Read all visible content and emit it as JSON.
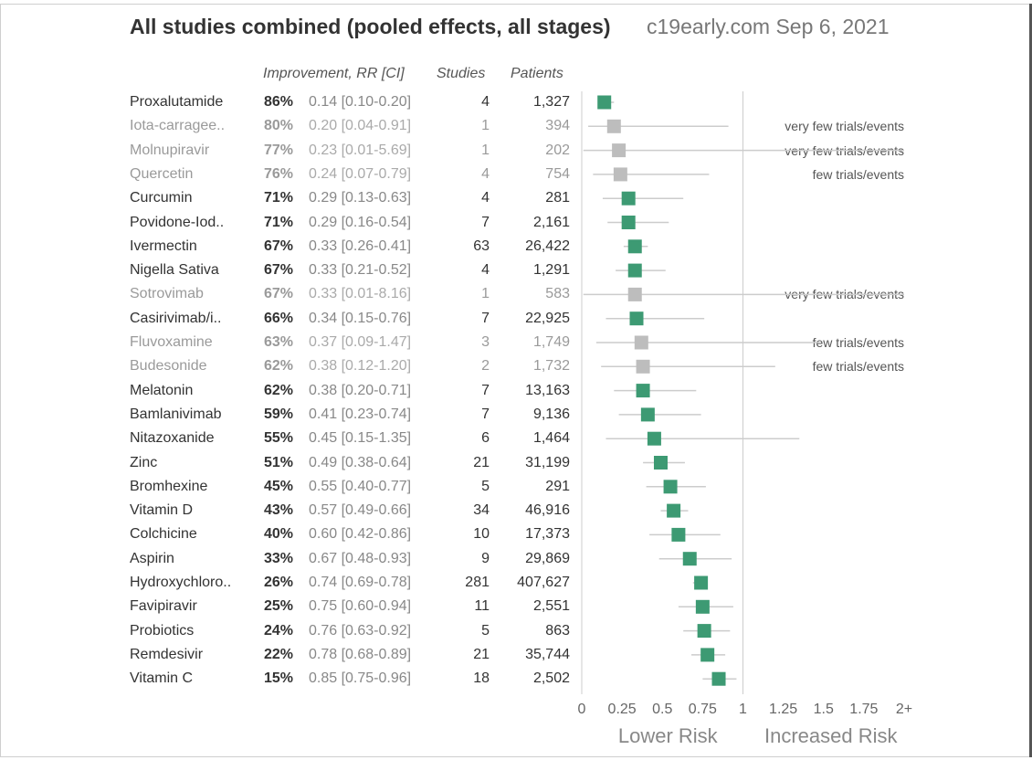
{
  "title": "All studies combined (pooled effects, all stages)",
  "subtitle": "c19early.com Sep 6, 2021",
  "columns": {
    "improvement": "Improvement, RR [CI]",
    "studies": "Studies",
    "patients": "Patients"
  },
  "colors": {
    "significant": "#3d9a73",
    "low_confidence": "#bdbdbd",
    "ci_line": "#cccccc",
    "axis": "#cccccc"
  },
  "chart_data": {
    "type": "forest",
    "title": "All studies combined (pooled effects, all stages)",
    "x_axis": {
      "min": 0,
      "max": 2,
      "ticks": [
        0,
        0.25,
        0.5,
        0.75,
        1,
        1.25,
        1.5,
        1.75,
        2
      ],
      "tick_labels": [
        "0",
        "0.25",
        "0.5",
        "0.75",
        "1",
        "1.25",
        "1.5",
        "1.75",
        "2+"
      ],
      "reference_line": 1,
      "label_left": "Lower Risk",
      "label_right": "Increased Risk"
    },
    "rows": [
      {
        "name": "Proxalutamide",
        "improvement": "86%",
        "rr_text": "0.14 [0.10-0.20]",
        "rr": 0.14,
        "ci_low": 0.1,
        "ci_high": 0.2,
        "studies": "4",
        "patients": "1,327",
        "low_confidence": false,
        "note": ""
      },
      {
        "name": "Iota-carragee..",
        "improvement": "80%",
        "rr_text": "0.20 [0.04-0.91]",
        "rr": 0.2,
        "ci_low": 0.04,
        "ci_high": 0.91,
        "studies": "1",
        "patients": "394",
        "low_confidence": true,
        "note": "very few trials/events"
      },
      {
        "name": "Molnupiravir",
        "improvement": "77%",
        "rr_text": "0.23 [0.01-5.69]",
        "rr": 0.23,
        "ci_low": 0.01,
        "ci_high": 5.69,
        "studies": "1",
        "patients": "202",
        "low_confidence": true,
        "note": "very few trials/events"
      },
      {
        "name": "Quercetin",
        "improvement": "76%",
        "rr_text": "0.24 [0.07-0.79]",
        "rr": 0.24,
        "ci_low": 0.07,
        "ci_high": 0.79,
        "studies": "4",
        "patients": "754",
        "low_confidence": true,
        "note": "few trials/events"
      },
      {
        "name": "Curcumin",
        "improvement": "71%",
        "rr_text": "0.29 [0.13-0.63]",
        "rr": 0.29,
        "ci_low": 0.13,
        "ci_high": 0.63,
        "studies": "4",
        "patients": "281",
        "low_confidence": false,
        "note": ""
      },
      {
        "name": "Povidone-Iod..",
        "improvement": "71%",
        "rr_text": "0.29 [0.16-0.54]",
        "rr": 0.29,
        "ci_low": 0.16,
        "ci_high": 0.54,
        "studies": "7",
        "patients": "2,161",
        "low_confidence": false,
        "note": ""
      },
      {
        "name": "Ivermectin",
        "improvement": "67%",
        "rr_text": "0.33 [0.26-0.41]",
        "rr": 0.33,
        "ci_low": 0.26,
        "ci_high": 0.41,
        "studies": "63",
        "patients": "26,422",
        "low_confidence": false,
        "note": ""
      },
      {
        "name": "Nigella Sativa",
        "improvement": "67%",
        "rr_text": "0.33 [0.21-0.52]",
        "rr": 0.33,
        "ci_low": 0.21,
        "ci_high": 0.52,
        "studies": "4",
        "patients": "1,291",
        "low_confidence": false,
        "note": ""
      },
      {
        "name": "Sotrovimab",
        "improvement": "67%",
        "rr_text": "0.33 [0.01-8.16]",
        "rr": 0.33,
        "ci_low": 0.01,
        "ci_high": 8.16,
        "studies": "1",
        "patients": "583",
        "low_confidence": true,
        "note": "very few trials/events"
      },
      {
        "name": "Casirivimab/i..",
        "improvement": "66%",
        "rr_text": "0.34 [0.15-0.76]",
        "rr": 0.34,
        "ci_low": 0.15,
        "ci_high": 0.76,
        "studies": "7",
        "patients": "22,925",
        "low_confidence": false,
        "note": ""
      },
      {
        "name": "Fluvoxamine",
        "improvement": "63%",
        "rr_text": "0.37 [0.09-1.47]",
        "rr": 0.37,
        "ci_low": 0.09,
        "ci_high": 1.47,
        "studies": "3",
        "patients": "1,749",
        "low_confidence": true,
        "note": "few trials/events"
      },
      {
        "name": "Budesonide",
        "improvement": "62%",
        "rr_text": "0.38 [0.12-1.20]",
        "rr": 0.38,
        "ci_low": 0.12,
        "ci_high": 1.2,
        "studies": "2",
        "patients": "1,732",
        "low_confidence": true,
        "note": "few trials/events"
      },
      {
        "name": "Melatonin",
        "improvement": "62%",
        "rr_text": "0.38 [0.20-0.71]",
        "rr": 0.38,
        "ci_low": 0.2,
        "ci_high": 0.71,
        "studies": "7",
        "patients": "13,163",
        "low_confidence": false,
        "note": ""
      },
      {
        "name": "Bamlanivimab",
        "improvement": "59%",
        "rr_text": "0.41 [0.23-0.74]",
        "rr": 0.41,
        "ci_low": 0.23,
        "ci_high": 0.74,
        "studies": "7",
        "patients": "9,136",
        "low_confidence": false,
        "note": ""
      },
      {
        "name": "Nitazoxanide",
        "improvement": "55%",
        "rr_text": "0.45 [0.15-1.35]",
        "rr": 0.45,
        "ci_low": 0.15,
        "ci_high": 1.35,
        "studies": "6",
        "patients": "1,464",
        "low_confidence": false,
        "note": ""
      },
      {
        "name": "Zinc",
        "improvement": "51%",
        "rr_text": "0.49 [0.38-0.64]",
        "rr": 0.49,
        "ci_low": 0.38,
        "ci_high": 0.64,
        "studies": "21",
        "patients": "31,199",
        "low_confidence": false,
        "note": ""
      },
      {
        "name": "Bromhexine",
        "improvement": "45%",
        "rr_text": "0.55 [0.40-0.77]",
        "rr": 0.55,
        "ci_low": 0.4,
        "ci_high": 0.77,
        "studies": "5",
        "patients": "291",
        "low_confidence": false,
        "note": ""
      },
      {
        "name": "Vitamin D",
        "improvement": "43%",
        "rr_text": "0.57 [0.49-0.66]",
        "rr": 0.57,
        "ci_low": 0.49,
        "ci_high": 0.66,
        "studies": "34",
        "patients": "46,916",
        "low_confidence": false,
        "note": ""
      },
      {
        "name": "Colchicine",
        "improvement": "40%",
        "rr_text": "0.60 [0.42-0.86]",
        "rr": 0.6,
        "ci_low": 0.42,
        "ci_high": 0.86,
        "studies": "10",
        "patients": "17,373",
        "low_confidence": false,
        "note": ""
      },
      {
        "name": "Aspirin",
        "improvement": "33%",
        "rr_text": "0.67 [0.48-0.93]",
        "rr": 0.67,
        "ci_low": 0.48,
        "ci_high": 0.93,
        "studies": "9",
        "patients": "29,869",
        "low_confidence": false,
        "note": ""
      },
      {
        "name": "Hydroxychloro..",
        "improvement": "26%",
        "rr_text": "0.74 [0.69-0.78]",
        "rr": 0.74,
        "ci_low": 0.69,
        "ci_high": 0.78,
        "studies": "281",
        "patients": "407,627",
        "low_confidence": false,
        "note": ""
      },
      {
        "name": "Favipiravir",
        "improvement": "25%",
        "rr_text": "0.75 [0.60-0.94]",
        "rr": 0.75,
        "ci_low": 0.6,
        "ci_high": 0.94,
        "studies": "11",
        "patients": "2,551",
        "low_confidence": false,
        "note": ""
      },
      {
        "name": "Probiotics",
        "improvement": "24%",
        "rr_text": "0.76 [0.63-0.92]",
        "rr": 0.76,
        "ci_low": 0.63,
        "ci_high": 0.92,
        "studies": "5",
        "patients": "863",
        "low_confidence": false,
        "note": ""
      },
      {
        "name": "Remdesivir",
        "improvement": "22%",
        "rr_text": "0.78 [0.68-0.89]",
        "rr": 0.78,
        "ci_low": 0.68,
        "ci_high": 0.89,
        "studies": "21",
        "patients": "35,744",
        "low_confidence": false,
        "note": ""
      },
      {
        "name": "Vitamin C",
        "improvement": "15%",
        "rr_text": "0.85 [0.75-0.96]",
        "rr": 0.85,
        "ci_low": 0.75,
        "ci_high": 0.96,
        "studies": "18",
        "patients": "2,502",
        "low_confidence": false,
        "note": ""
      }
    ]
  }
}
